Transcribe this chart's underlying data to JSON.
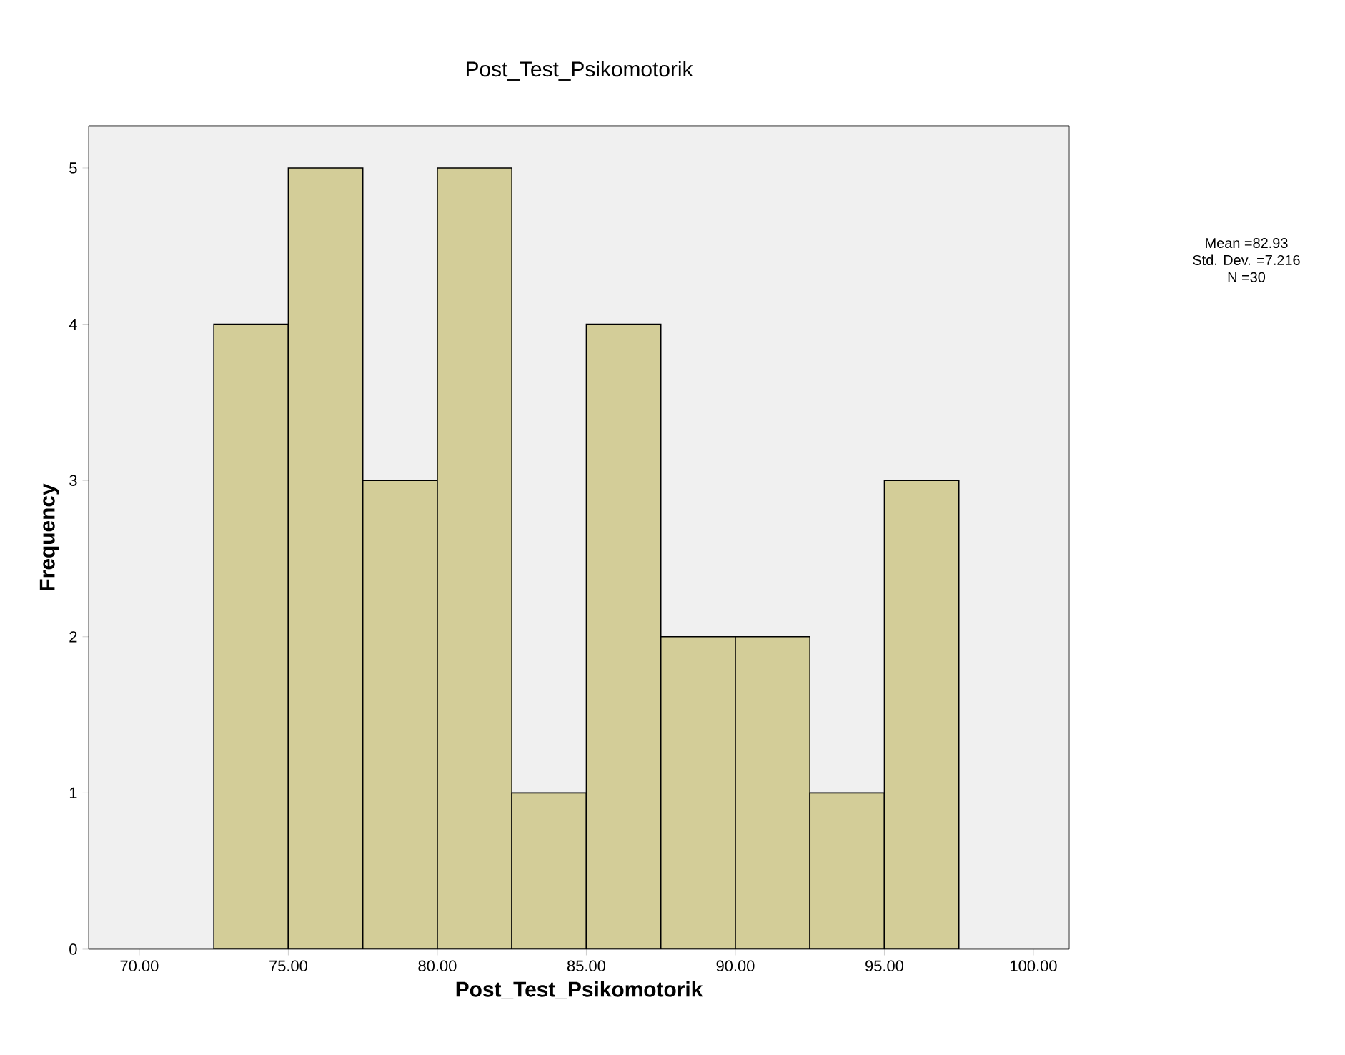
{
  "chart_data": {
    "type": "histogram",
    "title": "Post_Test_Psikomotorik",
    "xlabel": "Post_Test_Psikomotorik",
    "ylabel": "Frequency",
    "annotations": [
      "Mean =82.93",
      "Std. Dev. =7.216",
      "N =30"
    ],
    "bins": [
      72.5,
      75,
      77.5,
      80,
      82.5,
      85,
      87.5,
      90,
      92.5,
      95,
      97.5
    ],
    "values": [
      4,
      5,
      3,
      5,
      1,
      4,
      2,
      2,
      1,
      3
    ],
    "color": "#d3cd98",
    "xlim": [
      68.3,
      101.2
    ],
    "ylim": [
      0,
      5.27
    ],
    "xticks": [
      {
        "value": 70,
        "label": "70.00"
      },
      {
        "value": 75,
        "label": "75.00"
      },
      {
        "value": 80,
        "label": "80.00"
      },
      {
        "value": 85,
        "label": "85.00"
      },
      {
        "value": 90,
        "label": "90.00"
      },
      {
        "value": 95,
        "label": "95.00"
      },
      {
        "value": 100,
        "label": "100.00"
      }
    ],
    "yticks": [
      0,
      1,
      2,
      3,
      4,
      5
    ]
  }
}
